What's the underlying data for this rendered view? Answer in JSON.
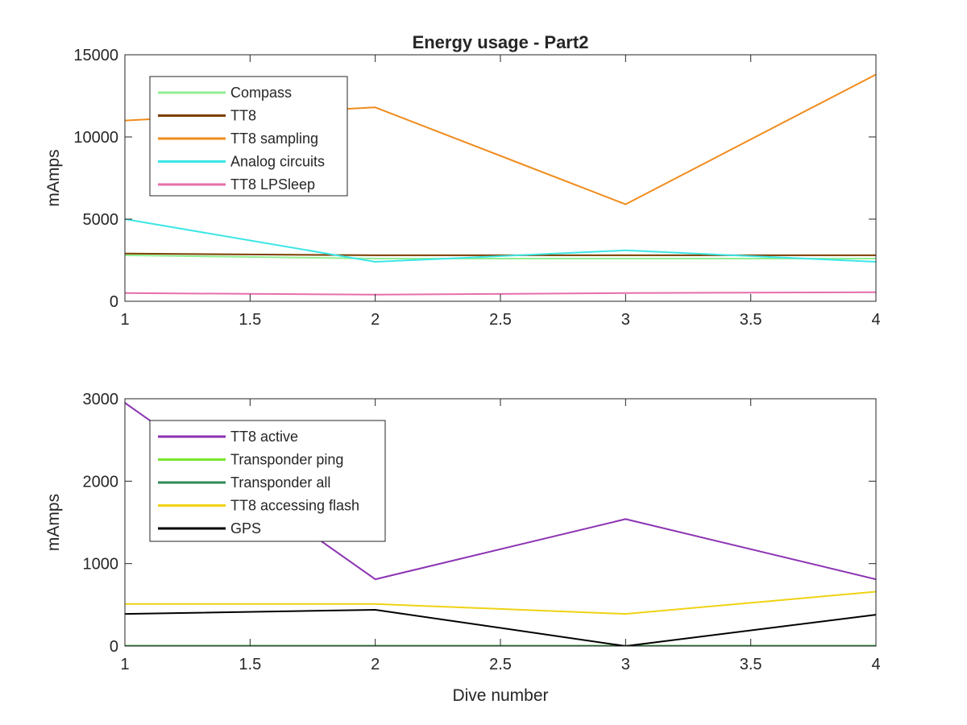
{
  "chart_data": [
    {
      "type": "line",
      "title": "Energy usage - Part2",
      "xlabel": "",
      "ylabel": "mAmps",
      "x": [
        1,
        2,
        3,
        4
      ],
      "xlim": [
        1,
        4
      ],
      "ylim": [
        0,
        15000
      ],
      "xticks": [
        "1",
        "1.5",
        "2",
        "2.5",
        "3",
        "3.5",
        "4"
      ],
      "yticks": [
        "0",
        "5000",
        "10000",
        "15000"
      ],
      "grid": false,
      "legend_position": "top-left",
      "series": [
        {
          "name": "Compass",
          "color": "#90ee90",
          "values": [
            2800,
            2600,
            2600,
            2600
          ]
        },
        {
          "name": "TT8",
          "color": "#7b3f00",
          "values": [
            2900,
            2800,
            2800,
            2800
          ]
        },
        {
          "name": "TT8 sampling",
          "color": "#f08c1e",
          "values": [
            11000,
            11800,
            5900,
            13800
          ]
        },
        {
          "name": "Analog circuits",
          "color": "#3ce6e6",
          "values": [
            5000,
            2400,
            3100,
            2400
          ]
        },
        {
          "name": "TT8 LPSleep",
          "color": "#e66eaa",
          "values": [
            500,
            400,
            500,
            550
          ]
        }
      ]
    },
    {
      "type": "line",
      "title": "",
      "xlabel": "Dive number",
      "ylabel": "mAmps",
      "x": [
        1,
        2,
        3,
        4
      ],
      "xlim": [
        1,
        4
      ],
      "ylim": [
        0,
        3000
      ],
      "xticks": [
        "1",
        "1.5",
        "2",
        "2.5",
        "3",
        "3.5",
        "4"
      ],
      "yticks": [
        "0",
        "1000",
        "2000",
        "3000"
      ],
      "grid": false,
      "legend_position": "top-left",
      "series": [
        {
          "name": "TT8 active",
          "color": "#8c32b4",
          "values": [
            2950,
            810,
            1540,
            810
          ]
        },
        {
          "name": "Transponder ping",
          "color": "#78e632",
          "values": [
            5,
            5,
            5,
            5
          ]
        },
        {
          "name": "Transponder all",
          "color": "#2e8b57",
          "values": [
            2,
            2,
            2,
            2
          ]
        },
        {
          "name": "TT8 accessing flash",
          "color": "#f0d214",
          "values": [
            510,
            510,
            390,
            660
          ]
        },
        {
          "name": "GPS",
          "color": "#000000",
          "values": [
            390,
            440,
            0,
            380
          ]
        }
      ]
    }
  ]
}
